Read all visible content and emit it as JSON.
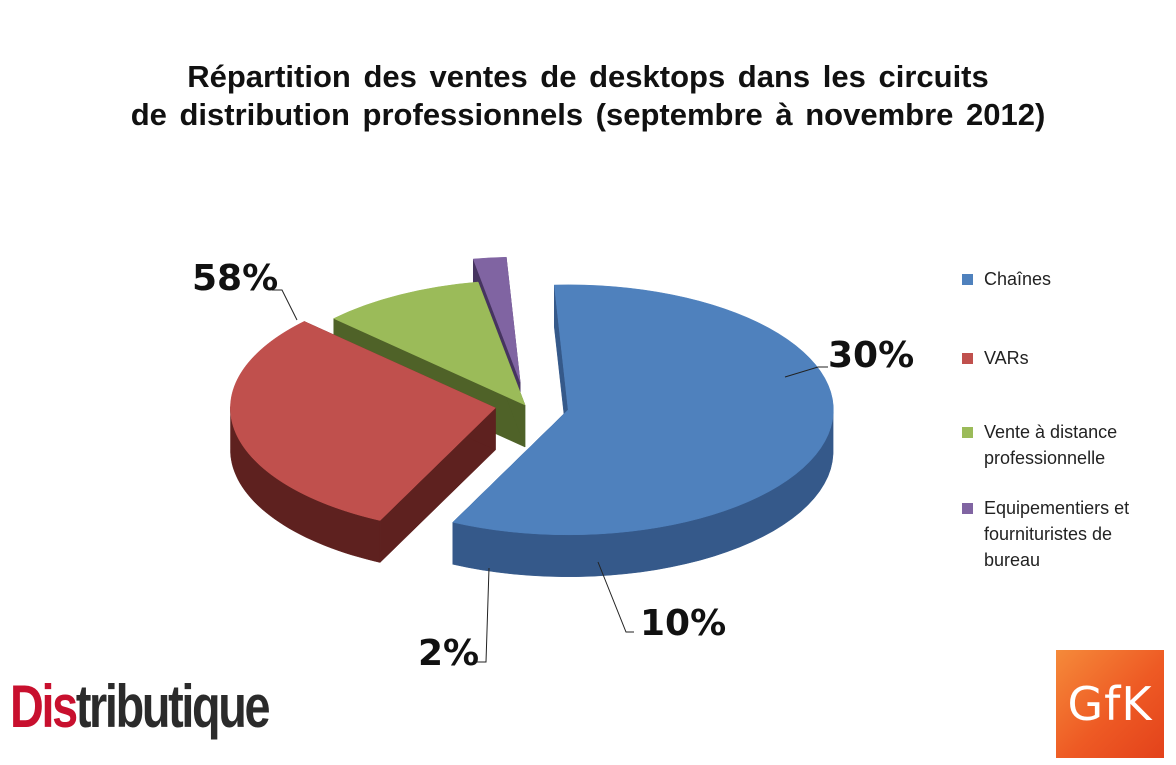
{
  "chart_data": {
    "type": "pie",
    "title_lines": [
      "Répartition des ventes de desktops dans les circuits",
      "de distribution professionnels (septembre à novembre 2012)"
    ],
    "series": [
      {
        "name": "Chaînes",
        "value": 58,
        "label": "58%",
        "color": "#4f81bd",
        "side": "#35598a"
      },
      {
        "name": "VARs",
        "value": 30,
        "label": "30%",
        "color": "#c0504d",
        "side": "#5e211f"
      },
      {
        "name": "Vente à distance professionnelle",
        "value": 10,
        "label": "10%",
        "color": "#9bbb59",
        "side": "#4f6228"
      },
      {
        "name": "Equipementiers et fournituristes de bureau",
        "value": 2,
        "label": "2%",
        "color": "#8064a2",
        "side": "#463460"
      }
    ],
    "legend_position": "right",
    "style": "3d exploded pie"
  },
  "logos": {
    "distributique_red": "Dis",
    "distributique_dark": "tributique",
    "gfk": "GfK"
  }
}
